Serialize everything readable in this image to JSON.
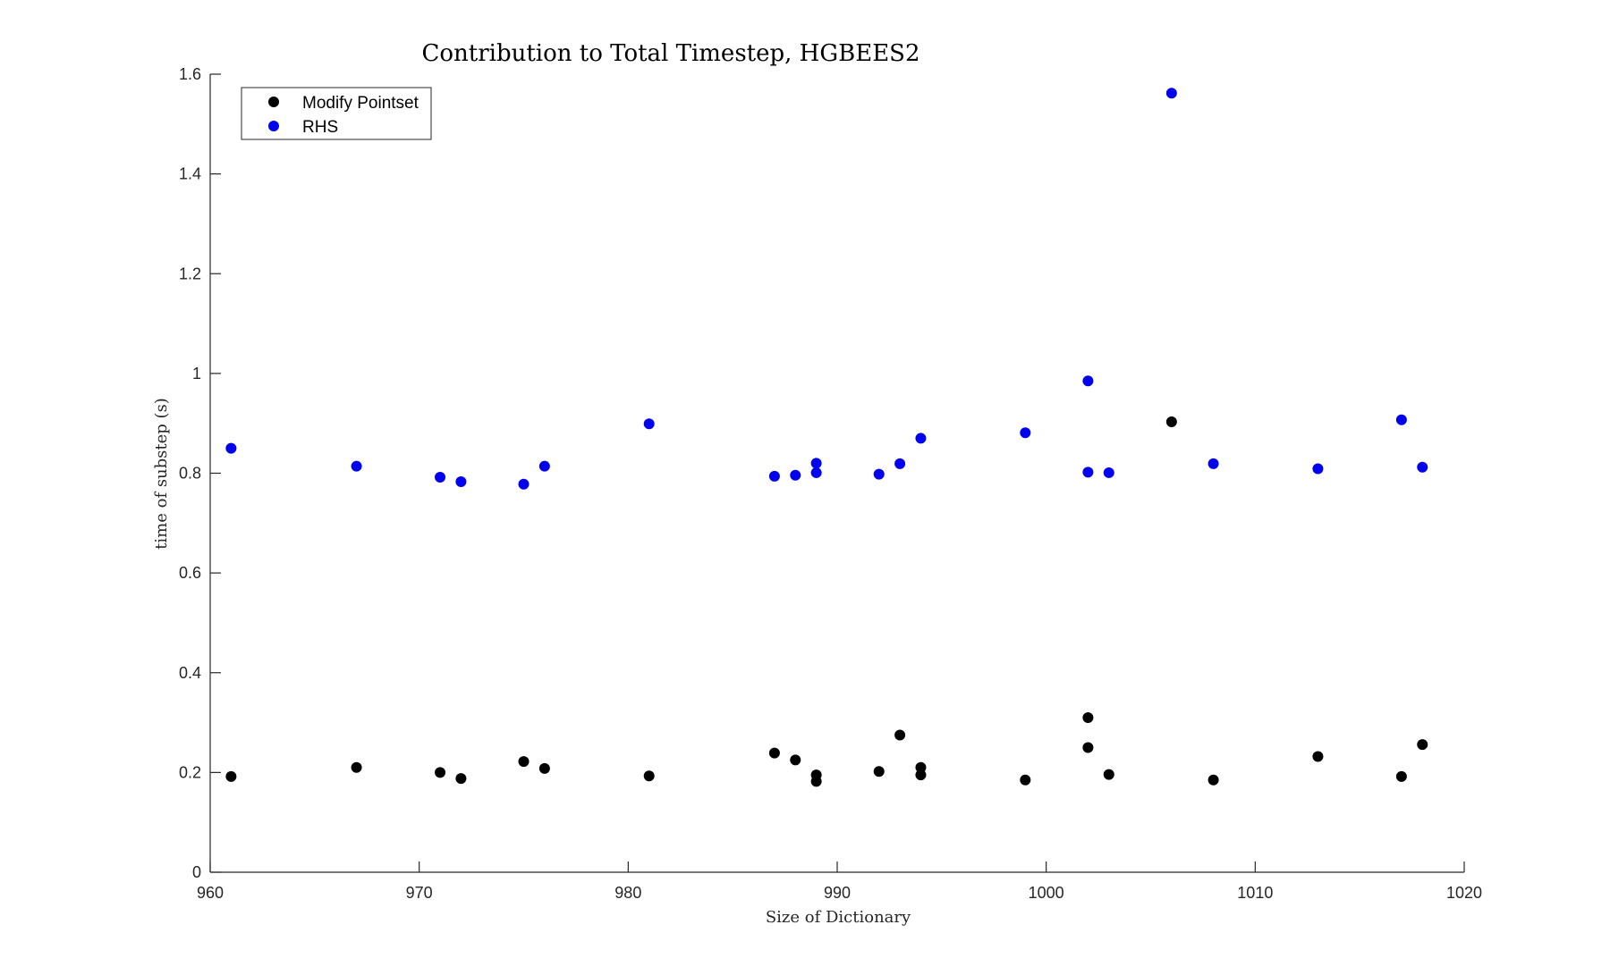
{
  "chart_data": {
    "type": "scatter",
    "title": "Contribution to Total Timestep, HGBEES2",
    "xlabel": "Size of Dictionary",
    "ylabel": "time of substep (s)",
    "xlim": [
      960,
      1020
    ],
    "ylim": [
      0,
      1.6
    ],
    "xticks": [
      960,
      970,
      980,
      990,
      1000,
      1010,
      1020
    ],
    "yticks": [
      0,
      0.2,
      0.4,
      0.6,
      0.8,
      1,
      1.2,
      1.4,
      1.6
    ],
    "ytick_labels": [
      "0",
      "0.2",
      "0.4",
      "0.6",
      "0.8",
      "1",
      "1.2",
      "1.4",
      "1.6"
    ],
    "grid": false,
    "legend_position": "top-left",
    "series": [
      {
        "name": "Modify Pointset",
        "color": "#000000",
        "points": [
          [
            961,
            0.192
          ],
          [
            967,
            0.21
          ],
          [
            971,
            0.2
          ],
          [
            972,
            0.188
          ],
          [
            975,
            0.222
          ],
          [
            976,
            0.208
          ],
          [
            981,
            0.193
          ],
          [
            987,
            0.239
          ],
          [
            988,
            0.225
          ],
          [
            989,
            0.195
          ],
          [
            989,
            0.182
          ],
          [
            992,
            0.202
          ],
          [
            993,
            0.275
          ],
          [
            994,
            0.21
          ],
          [
            994,
            0.195
          ],
          [
            999,
            0.185
          ],
          [
            1002,
            0.31
          ],
          [
            1002,
            0.25
          ],
          [
            1003,
            0.196
          ],
          [
            1006,
            0.903
          ],
          [
            1008,
            0.185
          ],
          [
            1013,
            0.232
          ],
          [
            1017,
            0.192
          ],
          [
            1018,
            0.256
          ]
        ]
      },
      {
        "name": "RHS",
        "color": "#0000ee",
        "points": [
          [
            961,
            0.85
          ],
          [
            967,
            0.814
          ],
          [
            971,
            0.792
          ],
          [
            972,
            0.783
          ],
          [
            975,
            0.778
          ],
          [
            976,
            0.814
          ],
          [
            981,
            0.899
          ],
          [
            987,
            0.794
          ],
          [
            988,
            0.796
          ],
          [
            989,
            0.82
          ],
          [
            989,
            0.801
          ],
          [
            992,
            0.798
          ],
          [
            993,
            0.819
          ],
          [
            994,
            0.87
          ],
          [
            999,
            0.881
          ],
          [
            1002,
            0.985
          ],
          [
            1002,
            0.802
          ],
          [
            1003,
            0.801
          ],
          [
            1006,
            1.562
          ],
          [
            1008,
            0.819
          ],
          [
            1013,
            0.809
          ],
          [
            1017,
            0.907
          ],
          [
            1018,
            0.812
          ]
        ]
      }
    ]
  }
}
